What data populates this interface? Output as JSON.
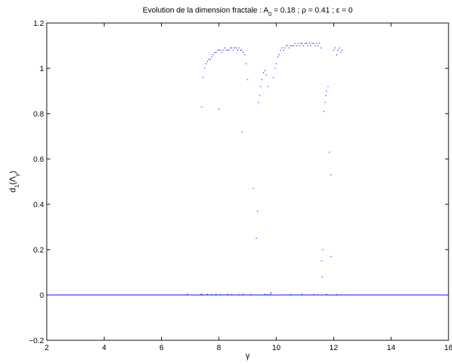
{
  "chart_data": {
    "type": "scatter",
    "title": {
      "prefix": "Evolution de la dimension fractale : A",
      "sub": "0",
      "suffix": " = 0.18 ; ρ = 0.41 ; ε = 0"
    },
    "xlabel": "γ",
    "ylabel": {
      "base": "d",
      "sub1": "1",
      "mid": "(Λ",
      "sub2": "γ",
      "end": ")"
    },
    "xlim": [
      2,
      16
    ],
    "ylim": [
      -0.2,
      1.2
    ],
    "xticks": [
      2,
      4,
      6,
      8,
      10,
      12,
      14,
      16
    ],
    "yticks": [
      -0.2,
      0,
      0.2,
      0.4,
      0.6,
      0.8,
      1,
      1.2
    ],
    "ytick_labels": [
      "−0.2",
      "0",
      "0.2",
      "0.4",
      "0.6",
      "0.8",
      "1",
      "1.2"
    ],
    "grid": false,
    "colors": {
      "series": "#0000ff",
      "axes": "#000000"
    },
    "baseline": {
      "y": 0,
      "x_range": [
        2,
        16
      ]
    },
    "series": [
      {
        "values": [
          [
            6.9,
            0.003
          ],
          [
            7.38,
            0.003
          ],
          [
            7.42,
            0.002
          ],
          [
            7.6,
            0.003
          ],
          [
            7.75,
            0.002
          ],
          [
            7.9,
            0.003
          ],
          [
            8.05,
            0.002
          ],
          [
            8.3,
            0.003
          ],
          [
            8.45,
            0.002
          ],
          [
            8.7,
            0.002
          ],
          [
            8.85,
            0.003
          ],
          [
            9.1,
            0.002
          ],
          [
            7.4,
            0.83
          ],
          [
            7.45,
            0.96
          ],
          [
            7.5,
            1.0
          ],
          [
            7.55,
            1.02
          ],
          [
            7.6,
            1.03
          ],
          [
            7.65,
            1.04
          ],
          [
            7.7,
            1.04
          ],
          [
            7.75,
            1.05
          ],
          [
            7.8,
            1.06
          ],
          [
            7.85,
            1.07
          ],
          [
            7.9,
            1.07
          ],
          [
            7.95,
            1.08
          ],
          [
            8.0,
            1.08
          ],
          [
            8.05,
            1.08
          ],
          [
            8.1,
            1.07
          ],
          [
            8.15,
            1.08
          ],
          [
            8.2,
            1.09
          ],
          [
            8.25,
            1.08
          ],
          [
            8.3,
            1.08
          ],
          [
            8.35,
            1.08
          ],
          [
            8.4,
            1.09
          ],
          [
            8.45,
            1.09
          ],
          [
            8.5,
            1.08
          ],
          [
            8.55,
            1.09
          ],
          [
            8.6,
            1.09
          ],
          [
            8.65,
            1.08
          ],
          [
            8.7,
            1.09
          ],
          [
            8.75,
            1.08
          ],
          [
            8.8,
            1.08
          ],
          [
            8.85,
            1.07
          ],
          [
            8.9,
            1.06
          ],
          [
            8.95,
            1.02
          ],
          [
            9.0,
            0.95
          ],
          [
            8.0,
            0.82
          ],
          [
            8.8,
            0.72
          ],
          [
            9.2,
            0.47
          ],
          [
            9.3,
            0.25
          ],
          [
            9.35,
            0.37
          ],
          [
            9.38,
            0.85
          ],
          [
            9.42,
            0.88
          ],
          [
            9.45,
            0.92
          ],
          [
            9.5,
            0.95
          ],
          [
            9.55,
            0.98
          ],
          [
            9.6,
            0.99
          ],
          [
            9.65,
            0.97
          ],
          [
            9.7,
            0.92
          ],
          [
            9.5,
            0.0
          ],
          [
            9.6,
            0.003
          ],
          [
            9.7,
            0.002
          ],
          [
            9.8,
            0.004
          ],
          [
            9.82,
            0.01
          ],
          [
            9.9,
            0.96
          ],
          [
            9.95,
            1.0
          ],
          [
            10.0,
            1.02
          ],
          [
            10.05,
            1.05
          ],
          [
            10.1,
            1.06
          ],
          [
            10.15,
            1.08
          ],
          [
            10.2,
            1.09
          ],
          [
            10.25,
            1.08
          ],
          [
            10.3,
            1.09
          ],
          [
            10.35,
            1.1
          ],
          [
            10.4,
            1.1
          ],
          [
            10.45,
            1.09
          ],
          [
            10.5,
            1.1
          ],
          [
            10.55,
            1.1
          ],
          [
            10.6,
            1.1
          ],
          [
            10.65,
            1.11
          ],
          [
            10.7,
            1.1
          ],
          [
            10.75,
            1.11
          ],
          [
            10.8,
            1.1
          ],
          [
            10.85,
            1.11
          ],
          [
            10.9,
            1.11
          ],
          [
            10.95,
            1.1
          ],
          [
            11.0,
            1.11
          ],
          [
            11.05,
            1.11
          ],
          [
            11.1,
            1.1
          ],
          [
            11.15,
            1.11
          ],
          [
            11.2,
            1.1
          ],
          [
            11.25,
            1.11
          ],
          [
            11.3,
            1.11
          ],
          [
            11.35,
            1.1
          ],
          [
            11.4,
            1.11
          ],
          [
            11.45,
            1.1
          ],
          [
            11.5,
            1.11
          ],
          [
            11.55,
            1.09
          ],
          [
            11.65,
            0.81
          ],
          [
            11.7,
            0.85
          ],
          [
            11.72,
            0.88
          ],
          [
            11.75,
            0.9
          ],
          [
            11.8,
            0.92
          ],
          [
            11.62,
            0.2
          ],
          [
            11.58,
            0.15
          ],
          [
            11.6,
            0.08
          ],
          [
            11.85,
            0.63
          ],
          [
            11.9,
            0.53
          ],
          [
            11.9,
            0.17
          ],
          [
            12.0,
            1.08
          ],
          [
            12.05,
            1.09
          ],
          [
            12.1,
            1.06
          ],
          [
            12.15,
            1.08
          ],
          [
            12.2,
            1.09
          ],
          [
            12.25,
            1.07
          ],
          [
            12.3,
            1.08
          ],
          [
            10.5,
            0.002
          ],
          [
            10.9,
            0.003
          ],
          [
            11.3,
            0.002
          ],
          [
            11.75,
            0.003
          ],
          [
            12.1,
            0.002
          ]
        ]
      }
    ]
  }
}
